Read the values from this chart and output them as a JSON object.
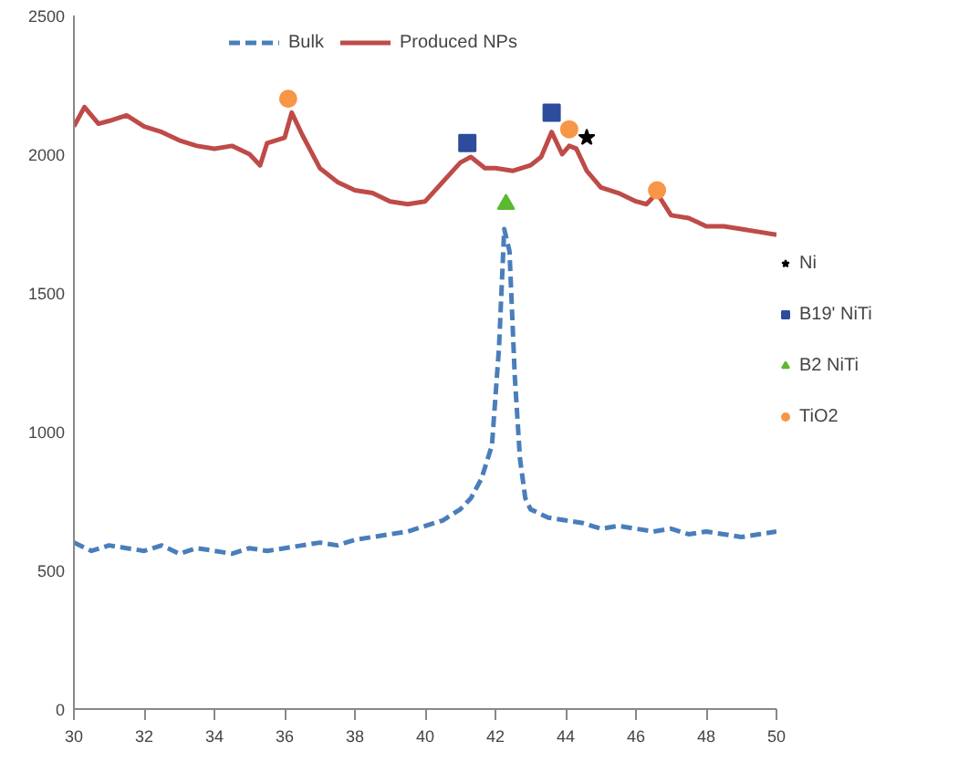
{
  "chart_data": {
    "type": "line",
    "xlim": [
      30,
      50
    ],
    "ylim": [
      0,
      2500
    ],
    "xticks": [
      30,
      32,
      34,
      36,
      38,
      40,
      42,
      44,
      46,
      48,
      50
    ],
    "yticks": [
      0,
      500,
      1000,
      1500,
      2000,
      2500
    ],
    "grid": false,
    "legend": "right",
    "series": [
      {
        "name": "Bulk",
        "line_style": "dashed",
        "color": "#4a7ebb",
        "x": [
          30,
          30.5,
          31,
          31.5,
          32,
          32.5,
          33,
          33.5,
          34,
          34.5,
          35,
          35.5,
          36,
          36.5,
          37,
          37.5,
          38,
          38.5,
          39,
          39.5,
          40,
          40.5,
          41,
          41.3,
          41.6,
          41.9,
          42.1,
          42.25,
          42.4,
          42.55,
          42.7,
          42.85,
          43,
          43.5,
          44,
          44.5,
          45,
          45.5,
          46,
          46.5,
          47,
          47.5,
          48,
          48.5,
          49,
          49.5,
          50
        ],
        "values": [
          600,
          570,
          590,
          580,
          570,
          590,
          560,
          580,
          570,
          560,
          580,
          570,
          580,
          590,
          600,
          590,
          610,
          620,
          630,
          640,
          660,
          680,
          720,
          760,
          830,
          950,
          1300,
          1730,
          1650,
          1200,
          900,
          760,
          720,
          690,
          680,
          670,
          650,
          660,
          650,
          640,
          650,
          630,
          640,
          630,
          620,
          630,
          640
        ]
      },
      {
        "name": "Produced NPs",
        "line_style": "solid",
        "color": "#be4b48",
        "x": [
          30,
          30.3,
          30.7,
          31,
          31.5,
          32,
          32.5,
          33,
          33.5,
          34,
          34.5,
          35,
          35.3,
          35.5,
          36,
          36.2,
          36.5,
          37,
          37.5,
          38,
          38.5,
          39,
          39.5,
          40,
          40.5,
          41,
          41.3,
          41.7,
          42,
          42.5,
          43,
          43.3,
          43.6,
          43.9,
          44.1,
          44.3,
          44.6,
          45,
          45.5,
          46,
          46.3,
          46.6,
          47,
          47.5,
          48,
          48.5,
          49,
          49.5,
          50
        ],
        "values": [
          2100,
          2170,
          2110,
          2120,
          2140,
          2100,
          2080,
          2050,
          2030,
          2020,
          2030,
          2000,
          1960,
          2040,
          2060,
          2150,
          2070,
          1950,
          1900,
          1870,
          1860,
          1830,
          1820,
          1830,
          1900,
          1970,
          1990,
          1950,
          1950,
          1940,
          1960,
          1990,
          2080,
          2000,
          2030,
          2020,
          1940,
          1880,
          1860,
          1830,
          1820,
          1860,
          1780,
          1770,
          1740,
          1740,
          1730,
          1720,
          1710
        ]
      },
      {
        "name": "Ni",
        "type": "scatter",
        "marker": "star",
        "color": "#000000",
        "x": [
          44.6
        ],
        "values": [
          2060
        ]
      },
      {
        "name": "B19' NiTi",
        "type": "scatter",
        "marker": "square",
        "color": "#2e4c9c",
        "x": [
          41.2,
          43.6
        ],
        "values": [
          2040,
          2150
        ]
      },
      {
        "name": "B2 NiTi",
        "type": "scatter",
        "marker": "triangle",
        "color": "#5cb82e",
        "x": [
          42.3
        ],
        "values": [
          1820
        ]
      },
      {
        "name": "TiO2",
        "type": "scatter",
        "marker": "circle",
        "color": "#f79646",
        "x": [
          36.1,
          44.1,
          46.6
        ],
        "values": [
          2200,
          2090,
          1870
        ]
      }
    ]
  }
}
